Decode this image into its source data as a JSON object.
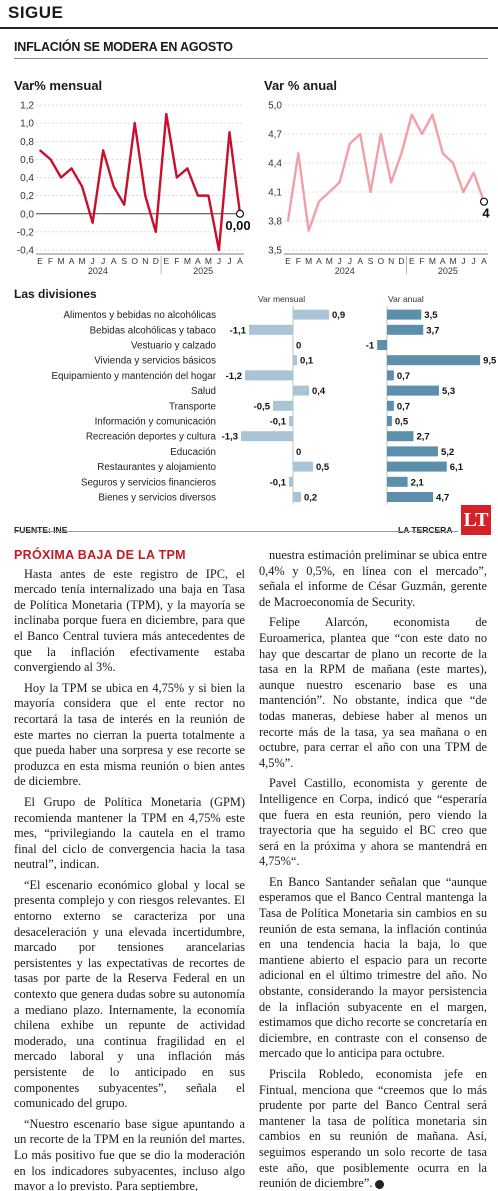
{
  "section": "SIGUE",
  "headline": "INFLACIÓN SE MODERA EN AGOSTO",
  "colors": {
    "monthly_line": "#c8102e",
    "annual_line": "#f2a0a8",
    "bar_monthly": "#a9c4d6",
    "bar_annual": "#5b8fac",
    "red": "#c21b23"
  },
  "chart_data": [
    {
      "type": "line",
      "title": "Var% mensual",
      "x_ticks": [
        "E",
        "F",
        "M",
        "A",
        "M",
        "J",
        "J",
        "A",
        "S",
        "O",
        "N",
        "D",
        "E",
        "F",
        "M",
        "A",
        "M",
        "J",
        "J",
        "A"
      ],
      "year_labels": [
        "2024",
        "2025"
      ],
      "y_ticks": [
        "1,2",
        "1,0",
        "0,8",
        "0,6",
        "0,4",
        "0,2",
        "0,0",
        "-0,2",
        "-0,4"
      ],
      "ylim": [
        -0.4,
        1.2
      ],
      "values": [
        0.7,
        0.6,
        0.4,
        0.5,
        0.3,
        -0.1,
        0.7,
        0.3,
        0.1,
        1.0,
        0.2,
        -0.2,
        1.1,
        0.4,
        0.5,
        0.2,
        0.2,
        -0.4,
        0.9,
        0.0
      ],
      "end_label": "0,00"
    },
    {
      "type": "line",
      "title": "Var % anual",
      "x_ticks": [
        "E",
        "F",
        "M",
        "A",
        "M",
        "J",
        "J",
        "A",
        "S",
        "O",
        "N",
        "D",
        "E",
        "F",
        "M",
        "A",
        "M",
        "J",
        "J",
        "A"
      ],
      "year_labels": [
        "2024",
        "2025"
      ],
      "y_ticks": [
        "5,0",
        "4,7",
        "4,4",
        "4,1",
        "3,8",
        "3,5"
      ],
      "ylim": [
        3.5,
        5.0
      ],
      "values": [
        3.8,
        4.5,
        3.7,
        4.0,
        4.1,
        4.2,
        4.6,
        4.7,
        4.1,
        4.7,
        4.2,
        4.5,
        4.9,
        4.7,
        4.9,
        4.5,
        4.4,
        4.1,
        4.3,
        4.0
      ],
      "end_label": "4"
    },
    {
      "type": "bar",
      "title": "Las divisiones",
      "series_headers": [
        "Var mensual",
        "Var anual"
      ],
      "categories": [
        "Alimentos y bebidas no alcohólicas",
        "Bebidas alcohólicas y tabaco",
        "Vestuario y calzado",
        "Vivienda y servicios básicos",
        "Equipamiento y mantención del hogar",
        "Salud",
        "Transporte",
        "Información y comunicación",
        "Recreación deportes y cultura",
        "Educación",
        "Restaurantes y alojamiento",
        "Seguros y servicios financieros",
        "Bienes y servicios diversos"
      ],
      "monthly": [
        0.9,
        -1.1,
        0,
        0.1,
        -1.2,
        0.4,
        -0.5,
        -0.1,
        -1.3,
        0,
        0.5,
        -0.1,
        0.2
      ],
      "monthly_labels": [
        "0,9",
        "-1,1",
        "0",
        "0,1",
        "-1,2",
        "0,4",
        "-0,5",
        "-0,1",
        "-1,3",
        "0",
        "0,5",
        "-0,1",
        "0,2"
      ],
      "annual": [
        3.5,
        3.7,
        -1,
        9.5,
        0.7,
        5.3,
        0.7,
        0.5,
        2.7,
        5.2,
        6.1,
        2.1,
        4.7
      ],
      "annual_labels": [
        "3,5",
        "3,7",
        "-1",
        "9,5",
        "0,7",
        "5,3",
        "0,7",
        "0,5",
        "2,7",
        "5,2",
        "6,1",
        "2,1",
        "4,7"
      ]
    }
  ],
  "source": "FUENTE: INE",
  "publisher": "LA TERCERA",
  "logo": "LT",
  "article": {
    "kicker": "PRÓXIMA BAJA DE LA TPM",
    "left_paragraphs": [
      "Hasta antes de este registro de IPC, el mercado tenía internalizado una baja en Tasa de Política Monetaria (TPM), y la mayoría se inclinaba porque fuera en diciembre, para que el Banco Central tuviera más antecedentes de que la inflación efectivamente estaba convergiendo al 3%.",
      "Hoy la TPM se ubica en 4,75% y si bien la mayoría considera que el ente rector no recortará la tasa de interés en la reunión de este martes no cierran la puerta totalmente a que pueda haber una sorpresa y ese recorte se produzca en esta misma reunión o bien antes de diciembre.",
      "El Grupo de Política Monetaria (GPM) recomienda mantener la TPM en 4,75% este mes, “privilegiando la cautela en el tramo final del ciclo de convergencia hacia la tasa neutral”, indican.",
      "“El escenario económico global y local se presenta complejo y con riesgos relevantes. El entorno externo se caracteriza por una desaceleración y una elevada incertidumbre, marcado por tensiones arancelarias persistentes y las expectativas de recortes de tasas por parte de la Reserva Federal en un contexto que genera dudas sobre su autonomía a mediano plazo. Internamente, la economía chilena exhibe un repunte de actividad moderado, una continua fragilidad en el mercado laboral y una inflación más persistente de lo anticipado en sus componentes subyacentes”, señala el comunicado del grupo.",
      "“Nuestro escenario base sigue apuntando a un recorte de la TPM en la reunión del martes. Lo más positivo fue que se dio la moderación en los indicadores subyacentes, incluso algo mayor a lo previsto. Para septiembre,"
    ],
    "right_paragraphs": [
      "nuestra estimación preliminar se ubica entre 0,4% y 0,5%, en línea con el mercado”, señala el informe de César Guzmán, gerente de Macroeconomía de Security.",
      "Felipe Alarcón, economista de Euroamerica, plantea que “con este dato no hay que descartar de plano un recorte de la tasa en la RPM de mañana (este martes), aunque nuestro escenario base es una mantención”. No obstante, indica que “de todas maneras, debiese haber al menos un recorte más de la tasa, ya sea mañana o en octubre, para cerrar el año con una TPM de 4,5%”.",
      "Pavel Castillo, economista y gerente de Intelligence en Corpa, indicó que “esperaría que fuera en esta reunión, pero viendo la trayectoria que ha seguido el BC creo que será en la próxima y ahora se mantendrá en 4,75%“.",
      "En Banco Santander señalan que “aunque esperamos que el Banco Central mantenga la Tasa de Política Monetaria sin cambios en su reunión de esta semana, la inflación continúa en una tendencia hacia la baja, lo que mantiene abierto el espacio para un recorte adicional en el último trimestre del año. No obstante, considerando la mayor persistencia de la inflación subyacente en el margen, estimamos que dicho recorte se concretaría en diciembre, en contraste con el consenso de mercado que lo anticipa para octubre.",
      "Priscila Robledo, economista jefe en Fintual, menciona que “creemos que lo más prudente por parte del Banco Central será mantener la tasa de política monetaria sin cambios en su reunión de mañana. Así, seguimos esperando un solo recorte de tasa este año, que posiblemente ocurra en la reunión de diciembre”."
    ]
  }
}
